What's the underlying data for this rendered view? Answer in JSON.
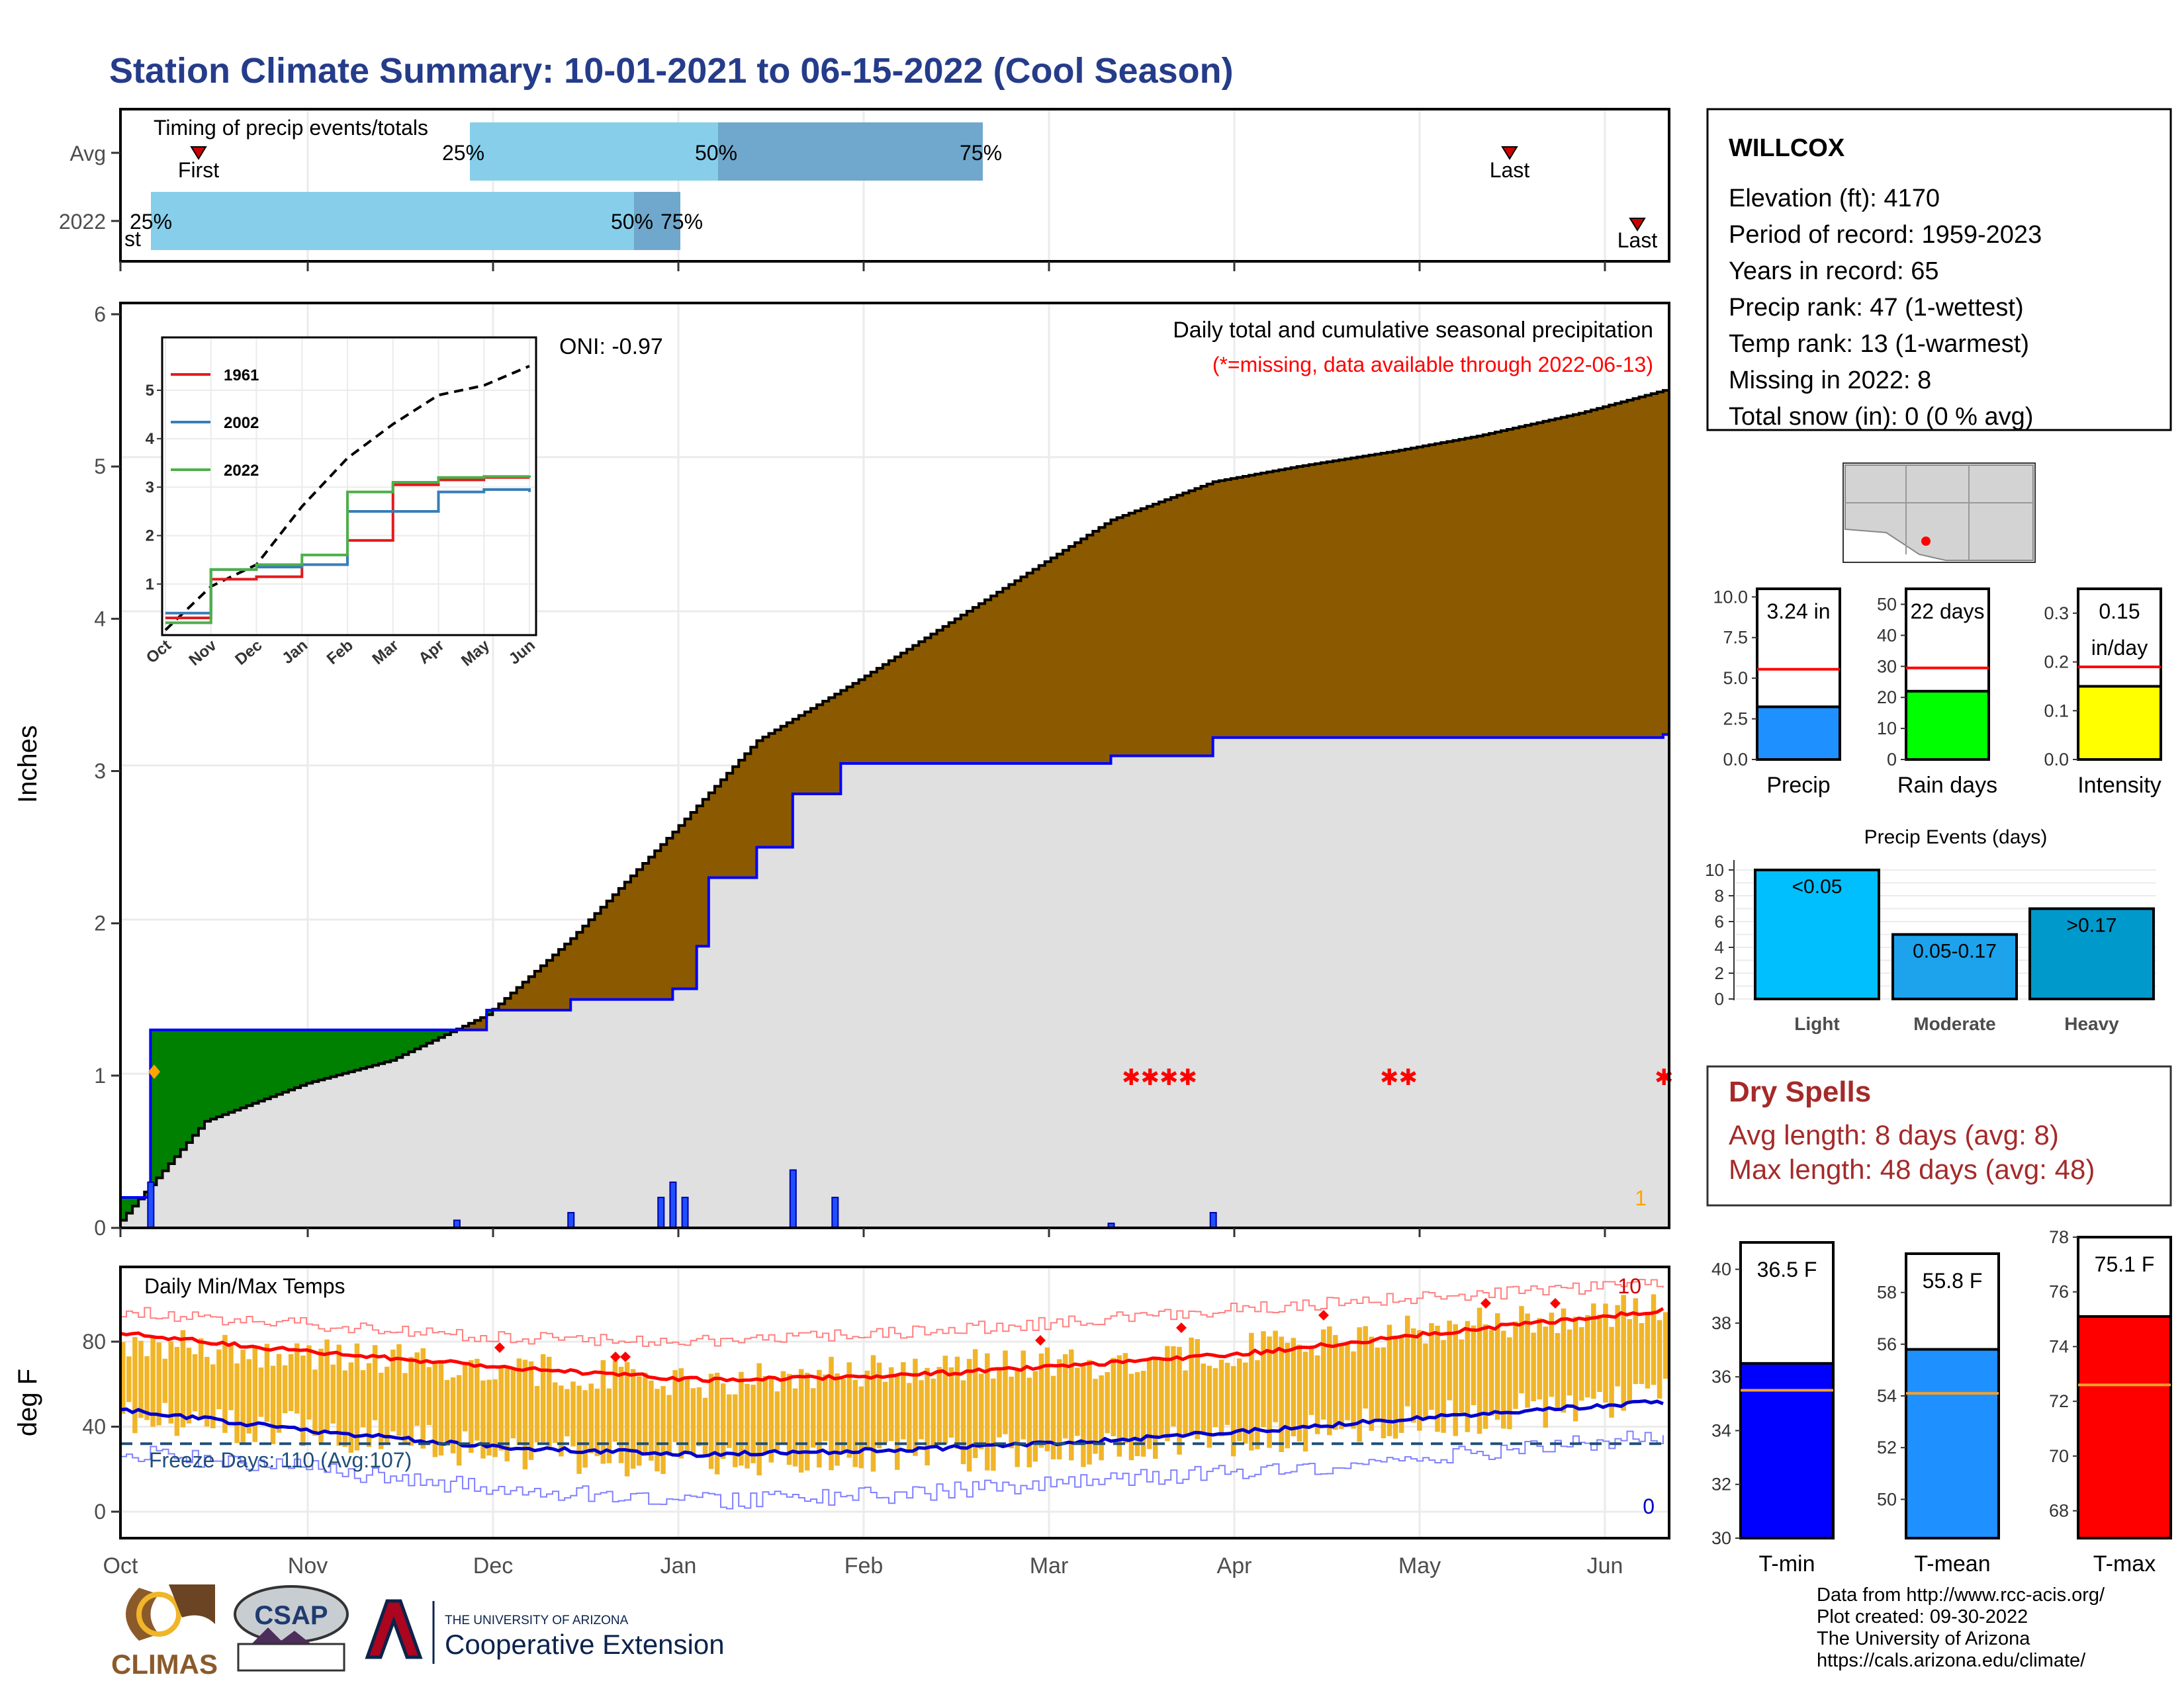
{
  "title": "Station Climate Summary: 10-01-2021 to 06-15-2022 (Cool Season)",
  "colors": {
    "title": "#253c8a",
    "light_blue": "#87ceeb",
    "mid_blue": "#6fa8cc",
    "brown": "#8b5a00",
    "green": "#008000",
    "gray_fill": "#e0e0e0",
    "orange": "#f0b528",
    "dry_red": "#a52a2a"
  },
  "timing_panel": {
    "title": "Timing of precip events/totals",
    "row_labels": [
      "Avg",
      "2022"
    ],
    "avg": {
      "first_label": "First",
      "last_label": "Last",
      "p25": "25%",
      "p50": "50%",
      "p75": "75%"
    },
    "y2022": {
      "first_label": "st",
      "last_label": "Last",
      "p25": "25%",
      "p50": "50%",
      "p75": "75%"
    }
  },
  "precip_panel": {
    "ylabel": "Inches",
    "oni": "ONI: -0.97",
    "caption": "Daily total and cumulative seasonal precipitation",
    "missing_note": "(*=missing, data available through 2022-06-13)",
    "corner_value": "1",
    "yticks": [
      "0",
      "1",
      "2",
      "3",
      "4",
      "5",
      "6"
    ]
  },
  "inset": {
    "legend": [
      "1961",
      "2002",
      "2022"
    ],
    "series_colors": [
      "#e41a1c",
      "#377eb8",
      "#4daf4a"
    ],
    "yticks": [
      "1",
      "2",
      "3",
      "4",
      "5"
    ],
    "xticks": [
      "Oct",
      "Nov",
      "Dec",
      "Jan",
      "Feb",
      "Mar",
      "Apr",
      "May",
      "Jun"
    ]
  },
  "temp_panel": {
    "title": "Daily Min/Max Temps",
    "ylabel": "deg F",
    "freeze_label": "Freeze Days: 110 (Avg:107)",
    "top_count": "10",
    "bottom_count": "0",
    "yticks": [
      "0",
      "40",
      "80"
    ]
  },
  "x_months": [
    "Oct",
    "Nov",
    "Dec",
    "Jan",
    "Feb",
    "Mar",
    "Apr",
    "May",
    "Jun"
  ],
  "station": {
    "name": "WILLCOX",
    "lines": [
      "Elevation (ft): 4170",
      "Period of record: 1959-2023",
      "Years in record: 65",
      "Precip rank: 47 (1-wettest)",
      "Temp rank: 13 (1-warmest)",
      "Missing in 2022: 8",
      "Total snow (in): 0 (0 % avg)"
    ]
  },
  "mini_bars": [
    {
      "label": "Precip",
      "value_text": "3.24 in",
      "value_text2": "",
      "color": "#1e90ff",
      "ticks": [
        "0.0",
        "2.5",
        "5.0",
        "7.5",
        "10.0"
      ]
    },
    {
      "label": "Rain days",
      "value_text": "22 days",
      "value_text2": "",
      "color": "#00ff00",
      "ticks": [
        "0",
        "10",
        "20",
        "30",
        "40",
        "50"
      ]
    },
    {
      "label": "Intensity",
      "value_text": "0.15",
      "value_text2": "in/day",
      "color": "#ffff00",
      "ticks": [
        "0.0",
        "0.1",
        "0.2",
        "0.3"
      ]
    }
  ],
  "events": {
    "title": "Precip Events (days)",
    "yticks": [
      "0",
      "2",
      "4",
      "6",
      "8",
      "10"
    ],
    "bars": [
      {
        "category": "Light",
        "label": "<0.05",
        "value": 10,
        "color": "#00bfff"
      },
      {
        "category": "Moderate",
        "label": "0.05-0.17",
        "value": 5,
        "color": "#1ca3ec"
      },
      {
        "category": "Heavy",
        "label": ">0.17",
        "value": 7,
        "color": "#0099cc"
      }
    ]
  },
  "dry_spells": {
    "title": "Dry Spells",
    "avg": "Avg length: 8 days (avg: 8)",
    "max": "Max length: 48 days (avg: 48)"
  },
  "temp_bars": [
    {
      "label": "T-min",
      "value_text": "36.5 F",
      "value": 36.5,
      "avg": 35.5,
      "ymin": 30,
      "ymax": 41,
      "ticks": [
        30,
        32,
        34,
        36,
        38,
        40
      ],
      "color": "#0000ff"
    },
    {
      "label": "T-mean",
      "value_text": "55.8 F",
      "value": 55.8,
      "avg": 54.1,
      "ymin": 48.5,
      "ymax": 59.5,
      "ticks": [
        50,
        52,
        54,
        56,
        58
      ],
      "color": "#1e90ff"
    },
    {
      "label": "T-max",
      "value_text": "75.1 F",
      "value": 75.1,
      "avg": 72.6,
      "ymin": 67,
      "ymax": 78,
      "ticks": [
        68,
        70,
        72,
        74,
        76,
        78
      ],
      "color": "#ff0000"
    }
  ],
  "footer": [
    "Data from http://www.rcc-acis.org/",
    "Plot created: 09-30-2022",
    "The University of Arizona",
    "https://cals.arizona.edu/climate/"
  ],
  "logos": {
    "climas": "CLIMAS",
    "csap": "CSAP",
    "ua_top": "THE UNIVERSITY OF ARIZONA",
    "ua_bottom": "Cooperative Extension"
  },
  "chart_data": [
    {
      "type": "area",
      "title": "Daily total and cumulative seasonal precipitation",
      "ylabel": "Inches",
      "ylim": [
        0,
        6
      ],
      "series": [
        {
          "name": "Average cumulative",
          "x": [
            "Oct 1",
            "Oct 15",
            "Nov 1",
            "Nov 15",
            "Dec 1",
            "Dec 15",
            "Jan 1",
            "Jan 15",
            "Feb 1",
            "Feb 15",
            "Mar 1",
            "Mar 15",
            "Apr 1",
            "Apr 15",
            "May 1",
            "May 15",
            "Jun 1",
            "Jun 15"
          ],
          "values": [
            0.05,
            0.7,
            0.95,
            1.1,
            1.4,
            1.9,
            2.6,
            3.2,
            3.6,
            3.95,
            4.3,
            4.65,
            4.9,
            5.0,
            5.1,
            5.2,
            5.35,
            5.5
          ]
        },
        {
          "name": "2022 cumulative",
          "x": [
            "Oct 1",
            "Oct 6",
            "Nov 26",
            "Dec 1",
            "Dec 15",
            "Jan 1",
            "Jan 5",
            "Jan 7",
            "Jan 15",
            "Jan 20",
            "Jan 21",
            "Jan 28",
            "Jan 29",
            "Mar 15",
            "Apr 1",
            "Jun 15"
          ],
          "values": [
            0.2,
            1.3,
            1.3,
            1.43,
            1.5,
            1.57,
            1.85,
            2.3,
            2.5,
            2.5,
            2.85,
            2.85,
            3.05,
            3.1,
            3.22,
            3.24
          ]
        },
        {
          "name": "Daily precip",
          "x": [
            "Oct 6",
            "Nov 26",
            "Dec 15",
            "Dec 30",
            "Jan 1",
            "Jan 3",
            "Jan 21",
            "Jan 28",
            "Mar 15",
            "Apr 1"
          ],
          "values": [
            0.3,
            0.05,
            0.1,
            0.2,
            0.3,
            0.2,
            0.38,
            0.2,
            0.03,
            0.1
          ]
        }
      ]
    },
    {
      "type": "line",
      "title": "",
      "ylim": [
        0,
        6
      ],
      "x": [
        "Oct",
        "Nov",
        "Dec",
        "Jan",
        "Feb",
        "Mar",
        "Apr",
        "May",
        "Jun"
      ],
      "series": [
        {
          "name": "1961",
          "values": [
            0.3,
            1.1,
            1.15,
            1.4,
            1.9,
            3.05,
            3.15,
            3.2,
            3.2
          ]
        },
        {
          "name": "2002",
          "values": [
            0.4,
            1.3,
            1.35,
            1.4,
            2.5,
            2.5,
            2.9,
            2.95,
            2.9
          ]
        },
        {
          "name": "2022",
          "values": [
            0.2,
            1.3,
            1.4,
            1.6,
            2.9,
            3.1,
            3.2,
            3.22,
            3.24
          ]
        },
        {
          "name": "Average",
          "values": [
            0.05,
            0.95,
            1.4,
            2.6,
            3.6,
            4.3,
            4.9,
            5.1,
            5.5
          ]
        }
      ]
    },
    {
      "type": "line",
      "title": "Daily Min/Max Temps",
      "ylabel": "deg F",
      "ylim": [
        -5,
        105
      ],
      "x": [
        "Oct",
        "Nov",
        "Dec",
        "Jan",
        "Feb",
        "Mar",
        "Apr",
        "May",
        "Jun"
      ],
      "series": [
        {
          "name": "Avg max",
          "values": [
            84,
            75,
            68,
            62,
            64,
            69,
            76,
            86,
            95
          ]
        },
        {
          "name": "Avg min",
          "values": [
            48,
            38,
            30,
            27,
            29,
            33,
            39,
            46,
            52
          ]
        },
        {
          "name": "Observed max",
          "values": [
            80,
            74,
            68,
            60,
            68,
            70,
            78,
            88,
            96
          ]
        },
        {
          "name": "Observed min",
          "values": [
            45,
            38,
            28,
            24,
            26,
            30,
            36,
            45,
            55
          ]
        },
        {
          "name": "Record max",
          "values": [
            94,
            88,
            82,
            80,
            84,
            90,
            97,
            102,
            108
          ]
        },
        {
          "name": "Record min",
          "values": [
            28,
            20,
            10,
            5,
            8,
            15,
            20,
            28,
            36
          ]
        }
      ],
      "freeze_threshold": 32
    },
    {
      "type": "bar",
      "title": "Precip Events (days)",
      "categories": [
        "Light",
        "Moderate",
        "Heavy"
      ],
      "values": [
        10,
        5,
        7
      ],
      "ylim": [
        0,
        10
      ]
    }
  ]
}
